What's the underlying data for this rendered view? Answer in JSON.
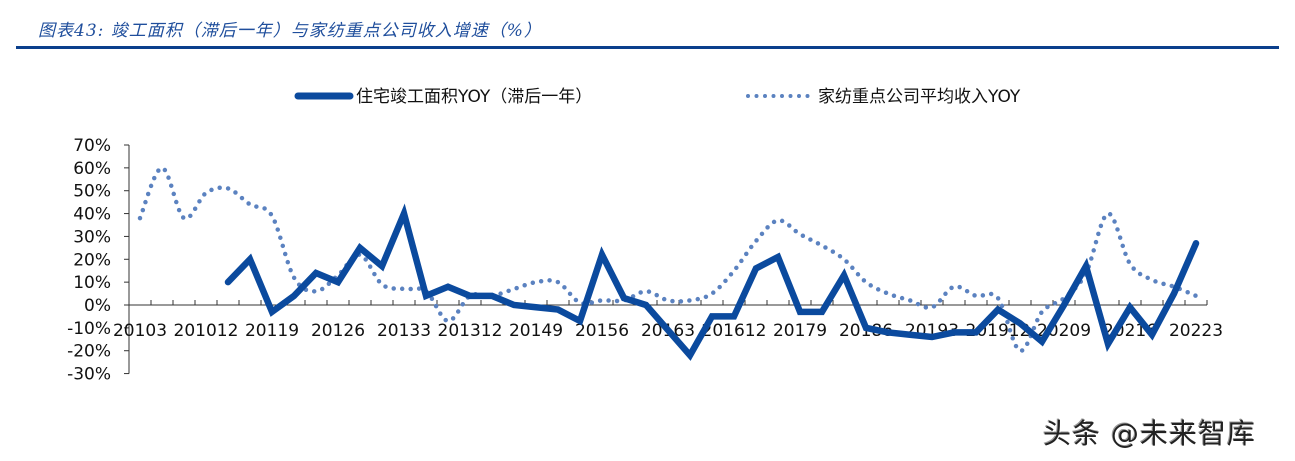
{
  "header": {
    "title": "图表43:  竣工面积（滞后一年）与家纺重点公司收入增速（%）"
  },
  "watermark": "头条 @未来智库",
  "colors": {
    "solid": "#0b4a9e",
    "dotted": "#5b82c0",
    "rule": "#0b3f8c",
    "axis": "#333333"
  },
  "chart_data": {
    "type": "line",
    "title": "竣工面积（滞后一年）与家纺重点公司收入增速（%）",
    "xlabel": "",
    "ylabel": "",
    "ylim": [
      -30,
      70
    ],
    "yticks": [
      "70%",
      "60%",
      "50%",
      "40%",
      "30%",
      "20%",
      "10%",
      "0%",
      "-10%",
      "-20%",
      "-30%"
    ],
    "xtick_labels": [
      "20103",
      "201012",
      "20119",
      "20126",
      "20133",
      "201312",
      "20149",
      "20156",
      "20163",
      "201612",
      "20179",
      "20186",
      "20193",
      "201912",
      "20209",
      "20216",
      "20223"
    ],
    "xtick_label_every": 3,
    "legend_position": "top",
    "grid": false,
    "n_points": 49,
    "series": [
      {
        "name": "住宅竣工面积YOY（滞后一年）",
        "style": "solid",
        "values": [
          null,
          null,
          null,
          null,
          10,
          20,
          -3,
          4,
          14,
          10,
          25,
          17,
          40,
          4,
          8,
          4,
          4,
          0,
          -1,
          -2,
          -7,
          22,
          3,
          0,
          -11,
          -22,
          -5,
          -5,
          16,
          21,
          -3,
          -3,
          13,
          -10,
          -12,
          -13,
          -14,
          -12,
          -12,
          -2,
          -8,
          -16,
          0,
          17,
          -17,
          -1,
          -13,
          5,
          27
        ]
      },
      {
        "name": "家纺重点公司平均收入YOY",
        "style": "dotted",
        "values": [
          38,
          60,
          38,
          49,
          51,
          44,
          39,
          12,
          6,
          13,
          22,
          9,
          7,
          6,
          -7,
          4,
          4,
          7,
          10,
          10,
          1,
          2,
          2,
          6,
          2,
          2,
          5,
          15,
          28,
          37,
          31,
          26,
          20,
          10,
          5,
          2,
          -1,
          8,
          4,
          3,
          -20,
          -3,
          3,
          14,
          40,
          18,
          11,
          8,
          4
        ]
      }
    ]
  }
}
